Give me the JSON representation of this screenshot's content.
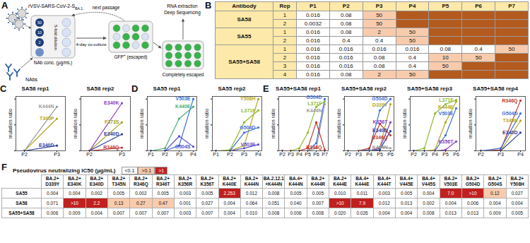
{
  "panel_a": {
    "letter": "A",
    "virus_label": {
      "main": "rVSV-SARS-CoV-2-S",
      "sub": "BA.1"
    },
    "next_passage": "next passage",
    "dilution": "5-fold dilution",
    "concentrations": [
      50,
      10,
      2
    ],
    "conc_label": "NAb conc. (µg/mL)",
    "gfp_label": {
      "main": "GFP",
      "sup": "+",
      "rest": " (escaped)"
    },
    "sequencing": [
      "RNA extraction",
      "Deep Sequencing"
    ],
    "nabs": "NAbs",
    "coculture": "4-day co-culture",
    "escaped": "Completely escaped"
  },
  "panel_b": {
    "letter": "B",
    "columns": [
      "Antibody",
      "Rep",
      "P1",
      "P2",
      "P3",
      "P4",
      "P5",
      "P6",
      "P7"
    ],
    "colors": {
      "header": "#fde9a9",
      "escaped": "#b35a1f",
      "high": "#f8cbad"
    },
    "groups": [
      {
        "antibody": "SA58",
        "reps": [
          {
            "rep": 1,
            "values": [
              0.016,
              0.08,
              50,
              null,
              null,
              null,
              null
            ]
          },
          {
            "rep": 2,
            "values": [
              0.0032,
              0.08,
              50,
              null,
              null,
              null,
              null
            ]
          }
        ]
      },
      {
        "antibody": "SA55",
        "reps": [
          {
            "rep": 1,
            "values": [
              0.016,
              0.08,
              2,
              50,
              null,
              null,
              null
            ]
          },
          {
            "rep": 2,
            "values": [
              0.016,
              0.4,
              0.4,
              50,
              null,
              null,
              null
            ]
          }
        ]
      },
      {
        "antibody": "SA55+SA58",
        "reps": [
          {
            "rep": 1,
            "values": [
              0.016,
              0.016,
              0.016,
              0.016,
              0.08,
              0.4,
              50
            ]
          },
          {
            "rep": 2,
            "values": [
              0.016,
              0.016,
              0.08,
              0.4,
              10,
              50,
              null
            ]
          },
          {
            "rep": 3,
            "values": [
              0.016,
              0.016,
              0.08,
              0.4,
              50,
              null,
              null
            ]
          },
          {
            "rep": 4,
            "values": [
              0.016,
              0.08,
              2,
              50,
              null,
              null,
              null
            ]
          }
        ]
      }
    ]
  },
  "chart_data": [
    {
      "panel": "C",
      "type": "line",
      "title": "SA58 rep1",
      "ylabel": "mutation ratio",
      "marker": "circle",
      "x": [
        "P2",
        "P3"
      ],
      "ylim": [
        0,
        1.05
      ],
      "yticks": [
        0,
        0.5,
        1
      ],
      "tick_labels": "x",
      "series": [
        {
          "name": "K444N",
          "color": "#9a9a9a",
          "values": [
            0,
            0.85
          ]
        },
        {
          "name": "T345P",
          "color": "#b2a81e",
          "values": [
            0,
            0.62
          ]
        },
        {
          "name": "E340D",
          "color": "#2f3d9c",
          "values": [
            0,
            0.1
          ]
        }
      ]
    },
    {
      "panel": "C",
      "type": "line",
      "title": "SA58 rep2",
      "ylabel": "mutation ratio",
      "marker": "circle",
      "x": [
        "P2",
        "P3"
      ],
      "ylim": [
        0,
        1.05
      ],
      "yticks": [
        0,
        0.5,
        1
      ],
      "tick_labels": "x",
      "series": [
        {
          "name": "E340K",
          "color": "#8a3fc0",
          "values": [
            0,
            0.92
          ]
        },
        {
          "name": "F373S",
          "color": "#a0a020",
          "values": [
            0,
            0.55
          ]
        },
        {
          "name": "E340D",
          "color": "#2f3d9c",
          "values": [
            0,
            0.32
          ]
        },
        {
          "name": "R346Q",
          "color": "#c0392b",
          "values": [
            0,
            0.06
          ]
        }
      ]
    },
    {
      "panel": "D",
      "type": "line",
      "title": "SA55 rep1",
      "ylabel": "mutation ratio",
      "marker": "circle",
      "x": [
        "P1",
        "P2",
        "P3",
        "P4"
      ],
      "ylim": [
        0,
        1.05
      ],
      "yticks": [
        0,
        0.5,
        1
      ],
      "tick_labels": "x",
      "series": [
        {
          "name": "V503E",
          "color": "#3a6fd8",
          "values": [
            0,
            0,
            0.1,
            1.0
          ]
        },
        {
          "name": "K440E",
          "color": "#4caf73",
          "values": [
            0,
            0.05,
            0.62,
            0.85
          ]
        },
        {
          "name": "G504S",
          "color": "#5b4fc7",
          "values": [
            0,
            0,
            0.28,
            0.08
          ]
        }
      ]
    },
    {
      "panel": "D",
      "type": "line",
      "title": "SA55 rep2",
      "ylabel": "mutation ratio",
      "marker": "circle",
      "x": [
        "P1",
        "P2",
        "P3",
        "P4"
      ],
      "ylim": [
        0,
        1.05
      ],
      "yticks": [
        0,
        0.5,
        1
      ],
      "tick_labels": "x",
      "series": [
        {
          "name": "Y508H",
          "color": "#b2a81e",
          "values": [
            0,
            0,
            0.1,
            1.0
          ]
        },
        {
          "name": "L371F",
          "color": "#8dbb2f",
          "values": [
            0,
            0.02,
            0.55,
            0.78
          ]
        },
        {
          "name": "G504D",
          "color": "#3a6fd8",
          "values": [
            0,
            0,
            0.35,
            0.45
          ]
        },
        {
          "name": "V503E",
          "color": "#5b4fc7",
          "values": [
            0,
            0,
            0.05,
            0.12
          ]
        }
      ]
    },
    {
      "panel": "E",
      "type": "line",
      "title": "SA55+SA58 rep1",
      "ylabel": "mutation ratio",
      "marker": "circle",
      "x": [
        "P2",
        "P3",
        "P4",
        "P5",
        "P6",
        "P7"
      ],
      "ylim": [
        0,
        1.05
      ],
      "yticks": [
        0,
        0.5,
        1
      ],
      "tick_labels": "x",
      "series": [
        {
          "name": "G504D",
          "color": "#3a6fd8",
          "values": [
            0,
            0,
            0,
            0,
            0.15,
            1.0
          ]
        },
        {
          "name": "L371F",
          "color": "#8dbb2f",
          "values": [
            0,
            0,
            0.05,
            0.35,
            0.85,
            0.95
          ]
        },
        {
          "name": "K444N",
          "color": "#9a9a9a",
          "values": [
            0,
            0,
            0,
            0,
            0.05,
            0.9
          ]
        },
        {
          "name": "R346Q",
          "color": "#c0392b",
          "values": [
            0,
            0,
            0,
            0.05,
            0.55,
            0.02
          ]
        }
      ]
    },
    {
      "panel": "E",
      "type": "line",
      "title": "SA55+SA58 rep2",
      "ylabel": "mutation ratio",
      "marker": "circle",
      "x": [
        "P2",
        "P3",
        "P4",
        "P5",
        "P6"
      ],
      "ylim": [
        0,
        1.05
      ],
      "yticks": [
        0,
        0.5,
        1
      ],
      "tick_labels": "x",
      "series": [
        {
          "name": "G504D",
          "color": "#3a6fd8",
          "values": [
            0,
            0,
            0.02,
            0.78,
            1.0
          ]
        },
        {
          "name": "D339Y",
          "color": "#b2a81e",
          "values": [
            0,
            0,
            0,
            0.05,
            0.9
          ]
        },
        {
          "name": "K356T",
          "color": "#8a3fc0",
          "values": [
            0,
            0,
            0,
            0.05,
            0.55
          ]
        },
        {
          "name": "E340D",
          "color": "#2f3d9c",
          "values": [
            0,
            0,
            0,
            0.02,
            0.38
          ]
        },
        {
          "name": "R346Q",
          "color": "#c0392b",
          "values": [
            0,
            0,
            0.05,
            0.52,
            0.3
          ]
        },
        {
          "name": "K444N",
          "color": "#9a9a9a",
          "values": [
            0,
            0,
            0,
            0.08,
            0.05
          ]
        }
      ]
    },
    {
      "panel": "E",
      "type": "line",
      "title": "SA55+SA58 rep3",
      "ylabel": "mutation ratio",
      "marker": "circle",
      "x": [
        "P2",
        "P3",
        "P4",
        "P5",
        "P6"
      ],
      "ylim": [
        0,
        1.05
      ],
      "yticks": [
        0,
        0.5,
        1
      ],
      "tick_labels": "x",
      "series": [
        {
          "name": "L371F",
          "color": "#8dbb2f",
          "values": [
            0,
            0.05,
            0.72,
            0.9,
            0.98
          ]
        },
        {
          "name": "K444E",
          "color": "#b2a81e",
          "values": [
            0,
            0,
            0.02,
            0.55,
            0.95
          ]
        },
        {
          "name": "V503E",
          "color": "#3a6fd8",
          "values": [
            0,
            0,
            0,
            0.3,
            0.82
          ]
        },
        {
          "name": "K356T",
          "color": "#8a3fc0",
          "values": [
            0,
            0,
            0,
            0.02,
            0.18
          ]
        }
      ]
    },
    {
      "panel": "E",
      "type": "line",
      "title": "SA55+SA58 rep4",
      "ylabel": "mutation ratio",
      "marker": "circle",
      "x": [
        "P2",
        "P3",
        "P4"
      ],
      "ylim": [
        0,
        1.05
      ],
      "yticks": [
        0,
        0.5,
        1
      ],
      "tick_labels": "x",
      "series": [
        {
          "name": "R346Q",
          "color": "#c0392b",
          "values": [
            0,
            0.02,
            0.97
          ]
        },
        {
          "name": "G504D",
          "color": "#3a6fd8",
          "values": [
            0,
            0.05,
            0.72
          ]
        },
        {
          "name": "T345N",
          "color": "#b2a81e",
          "values": [
            0,
            0,
            0.58
          ]
        },
        {
          "name": "E340D",
          "color": "#2f3d9c",
          "values": [
            0,
            0,
            0.35
          ]
        }
      ]
    }
  ],
  "panel_f": {
    "letter": "F",
    "title": "Pseudovirus neutralizing IC50 (µg/mL)",
    "legend": [
      {
        "label": "<0.1",
        "color": "#ffffff"
      },
      {
        "label": ">0.1",
        "min": 0.1,
        "color": "#f8cbad"
      },
      {
        "label": ">1",
        "min": 1,
        "color": "#c0201f"
      }
    ],
    "columns": [
      [
        "BA.2+",
        "D339Y"
      ],
      [
        "BA.2+",
        "E340K"
      ],
      [
        "BA.2+",
        "E340D"
      ],
      [
        "BA.2+",
        "T345N"
      ],
      [
        "BA.2+",
        "R346Q"
      ],
      [
        "BA.2+",
        "R346T"
      ],
      [
        "BA.2+",
        "K356R"
      ],
      [
        "BA.2+",
        "K356T"
      ],
      [
        "BA.2+",
        "K440E"
      ],
      [
        "BA.2+",
        "K444N"
      ],
      [
        "BA.2.12.1",
        "+K444N"
      ],
      [
        "BA.4+",
        "K444N"
      ],
      [
        "BA.2+",
        "K444R"
      ],
      [
        "BA.2+",
        "K444E"
      ],
      [
        "BA.4+",
        "K444E"
      ],
      [
        "BA.4+",
        "K444T"
      ],
      [
        "BA.4+",
        "V445E"
      ],
      [
        "BA.4+",
        "V445S"
      ],
      [
        "BA.2+",
        "V503E"
      ],
      [
        "BA.2+",
        "G504D"
      ],
      [
        "BA.2+",
        "G504S"
      ],
      [
        "BA.2+",
        "Y508H"
      ]
    ],
    "rows": [
      {
        "name": "SA55",
        "values": [
          0.004,
          0.004,
          0.002,
          0.005,
          0.002,
          0.005,
          0.003,
          0.005,
          2.253,
          0.012,
          0.008,
          0.005,
          0.005,
          {
            "value": 0.01,
            "label": "0.010"
          },
          0.011,
          0.003,
          0.005,
          0.004,
          {
            "value": 7,
            "label": "7.0"
          },
          {
            "value": 10,
            "label": ">10"
          },
          0.12,
          0.027
        ]
      },
      {
        "name": "SA58",
        "values": [
          0.071,
          {
            "value": 10,
            "label": ">10"
          },
          2.2,
          0.13,
          0.27,
          0.47,
          0.001,
          0.027,
          0.004,
          0.064,
          0.051,
          {
            "value": 0.04,
            "label": "0.040"
          },
          0.007,
          {
            "value": 10,
            "label": ">10"
          },
          7.9,
          0.012,
          0.013,
          0.002,
          0.004,
          0.006,
          0.004,
          0.004
        ]
      },
      {
        "name": "SA55+SA58",
        "values": [
          0.006,
          0.009,
          0.004,
          0.007,
          0.007,
          0.007,
          0.003,
          0.007,
          0.004,
          {
            "value": 0.01,
            "label": "0.010"
          },
          0.008,
          0.006,
          0.008,
          {
            "value": 0.02,
            "label": "0.020"
          },
          0.026,
          0.004,
          0.004,
          0.008,
          0.013,
          0.013,
          0.009,
          0.005
        ]
      }
    ]
  }
}
